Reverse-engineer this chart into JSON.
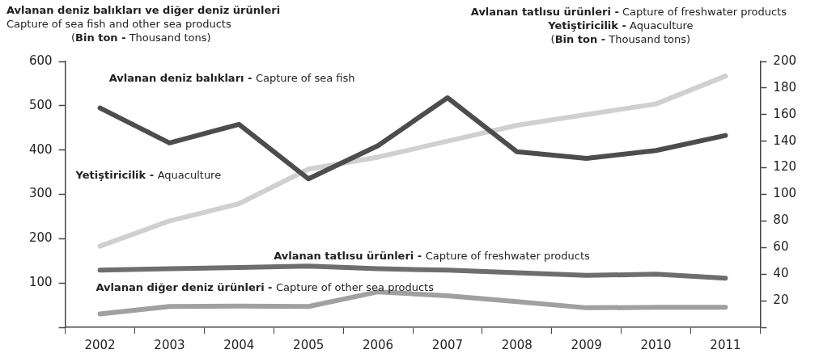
{
  "chart_data": {
    "type": "line",
    "ylabel": "Avlanan deniz balıkları ve diğer deniz ürünleri\nCapture of sea fish and other sea products\n(Bin ton - Thousand tons)",
    "y2label": "Avlanan tatlısu ürünleri - Capture of freshwater products\nYetiştiricilik - Aquaculture\n(Bin ton - Thousand tons)",
    "categories": [
      "2002",
      "2003",
      "2004",
      "2005",
      "2006",
      "2007",
      "2008",
      "2009",
      "2010",
      "2011"
    ],
    "series": [
      {
        "name": "Avlanan deniz balıkları - Capture of sea fish",
        "color": "#4d4d4d",
        "values": [
          495,
          416,
          458,
          335,
          410,
          518,
          396,
          381,
          399,
          433
        ]
      },
      {
        "name": "Yetiştiricilik - Aquaculture",
        "color": "#d0d0d0",
        "axis": "y2",
        "values": [
          61,
          80,
          93,
          119,
          128,
          140,
          152,
          160,
          168,
          189
        ]
      },
      {
        "name": "Avlanan tatlısu ürünleri - Capture of freshwater products",
        "color": "#6e6e6e",
        "axis": "y2",
        "values": [
          43,
          44,
          45,
          46,
          44,
          43,
          41,
          39,
          40,
          37
        ]
      },
      {
        "name": "Avlanan diğer deniz ürünleri - Capture of other sea products",
        "color": "#a0a0a0",
        "values": [
          30,
          47,
          48,
          47,
          80,
          71,
          58,
          44,
          45,
          45
        ]
      }
    ],
    "ylim": [
      0,
      600
    ],
    "yticks": [
      {
        "value": 0,
        "label": null
      },
      100,
      200,
      300,
      400,
      500,
      600
    ],
    "y2lim": [
      0,
      200
    ],
    "y2ticks": [
      {
        "value": 0,
        "label": null
      },
      20,
      40,
      60,
      80,
      100,
      120,
      140,
      160,
      180,
      200
    ],
    "grid": false,
    "legend": false,
    "marker": "none",
    "line_style": "solid"
  }
}
